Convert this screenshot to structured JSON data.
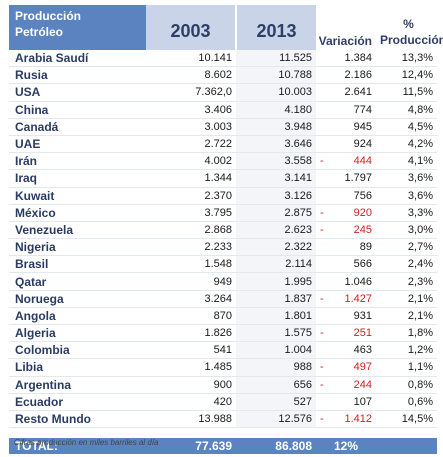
{
  "header": {
    "name_line1": "Producción",
    "name_line2": "Petróleo",
    "year1": "2003",
    "year2": "2013",
    "variation": "Variación",
    "pct_line1": "%",
    "pct_line2": "Producción"
  },
  "rows": [
    {
      "country": "Arabia Saudí",
      "y2003": "10.141",
      "y2013": "11.525",
      "sign": "",
      "var": "1.384",
      "pct": "13,3%"
    },
    {
      "country": "Rusia",
      "y2003": "8.602",
      "y2013": "10.788",
      "sign": "",
      "var": "2.186",
      "pct": "12,4%"
    },
    {
      "country": "USA",
      "y2003": "7.362,0",
      "y2013": "10.003",
      "sign": "",
      "var": "2.641",
      "pct": "11,5%"
    },
    {
      "country": "China",
      "y2003": "3.406",
      "y2013": "4.180",
      "sign": "",
      "var": "774",
      "pct": "4,8%"
    },
    {
      "country": "Canadá",
      "y2003": "3.003",
      "y2013": "3.948",
      "sign": "",
      "var": "945",
      "pct": "4,5%"
    },
    {
      "country": "UAE",
      "y2003": "2.722",
      "y2013": "3.646",
      "sign": "",
      "var": "924",
      "pct": "4,2%"
    },
    {
      "country": "Irán",
      "y2003": "4.002",
      "y2013": "3.558",
      "sign": "-",
      "var": "444",
      "pct": "4,1%"
    },
    {
      "country": "Iraq",
      "y2003": "1.344",
      "y2013": "3.141",
      "sign": "",
      "var": "1.797",
      "pct": "3,6%"
    },
    {
      "country": "Kuwait",
      "y2003": "2.370",
      "y2013": "3.126",
      "sign": "",
      "var": "756",
      "pct": "3,6%"
    },
    {
      "country": "México",
      "y2003": "3.795",
      "y2013": "2.875",
      "sign": "-",
      "var": "920",
      "pct": "3,3%"
    },
    {
      "country": "Venezuela",
      "y2003": "2.868",
      "y2013": "2.623",
      "sign": "-",
      "var": "245",
      "pct": "3,0%"
    },
    {
      "country": "Nigeria",
      "y2003": "2.233",
      "y2013": "2.322",
      "sign": "",
      "var": "89",
      "pct": "2,7%"
    },
    {
      "country": "Brasil",
      "y2003": "1.548",
      "y2013": "2.114",
      "sign": "",
      "var": "566",
      "pct": "2,4%"
    },
    {
      "country": "Qatar",
      "y2003": "949",
      "y2013": "1.995",
      "sign": "",
      "var": "1.046",
      "pct": "2,3%"
    },
    {
      "country": "Noruega",
      "y2003": "3.264",
      "y2013": "1.837",
      "sign": "-",
      "var": "1.427",
      "pct": "2,1%"
    },
    {
      "country": "Angola",
      "y2003": "870",
      "y2013": "1.801",
      "sign": "",
      "var": "931",
      "pct": "2,1%"
    },
    {
      "country": "Algeria",
      "y2003": "1.826",
      "y2013": "1.575",
      "sign": "-",
      "var": "251",
      "pct": "1,8%"
    },
    {
      "country": "Colombia",
      "y2003": "541",
      "y2013": "1.004",
      "sign": "",
      "var": "463",
      "pct": "1,2%"
    },
    {
      "country": "Libia",
      "y2003": "1.485",
      "y2013": "988",
      "sign": "-",
      "var": "497",
      "pct": "1,1%"
    },
    {
      "country": "Argentina",
      "y2003": "900",
      "y2013": "656",
      "sign": "-",
      "var": "244",
      "pct": "0,8%"
    },
    {
      "country": "Ecuador",
      "y2003": "420",
      "y2013": "527",
      "sign": "",
      "var": "107",
      "pct": "0,6%"
    },
    {
      "country": "Resto Mundo",
      "y2003": "13.988",
      "y2013": "12.576",
      "sign": "-",
      "var": "1.412",
      "pct": "14,5%"
    }
  ],
  "total": {
    "label": "TOTAL:",
    "y2003": "77.639",
    "y2013": "86.808",
    "var": "12%"
  },
  "footnote": "Cifras  producción en miles barriles al día",
  "colors": {
    "header_blue": "#5b83c0",
    "year_header_bg": "#c9d4e8",
    "negative": "#d42020"
  }
}
